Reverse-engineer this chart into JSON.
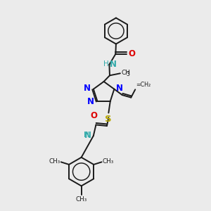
{
  "bg_color": "#ebebeb",
  "bond_color": "#1a1a1a",
  "bond_width": 1.4,
  "fig_size": [
    3.0,
    3.0
  ],
  "dpi": 100,
  "xlim": [
    0,
    10
  ],
  "ylim": [
    0,
    10
  ]
}
